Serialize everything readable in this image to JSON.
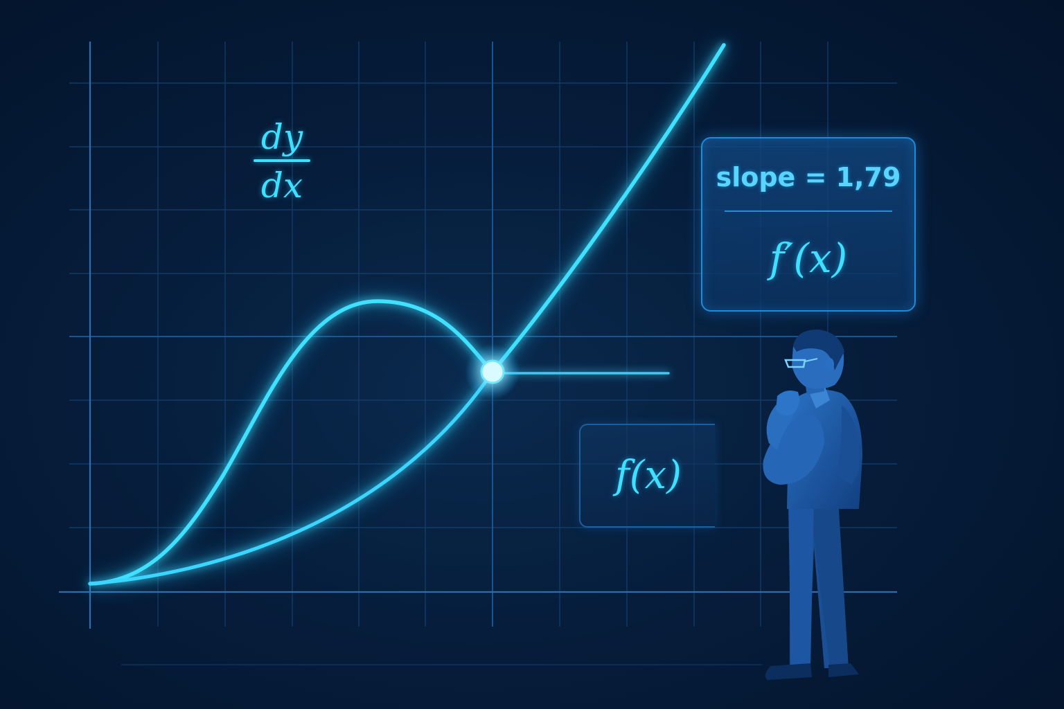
{
  "derivative_notation": {
    "numerator": "dy",
    "denominator": "dx"
  },
  "slope_panel": {
    "slope_text": "slope = 1,79",
    "derivative_label": "f′(x)"
  },
  "function_panel": {
    "label": "f(x)"
  },
  "colors": {
    "background": "#03142c",
    "grid": "#1a4a80",
    "curve": "#3fe0ff",
    "panel_border": "#1c8ddc",
    "figure": "#1c5aa6"
  },
  "icons": {
    "person": "thinking-person-figure",
    "point": "glowing-intersection-point"
  }
}
